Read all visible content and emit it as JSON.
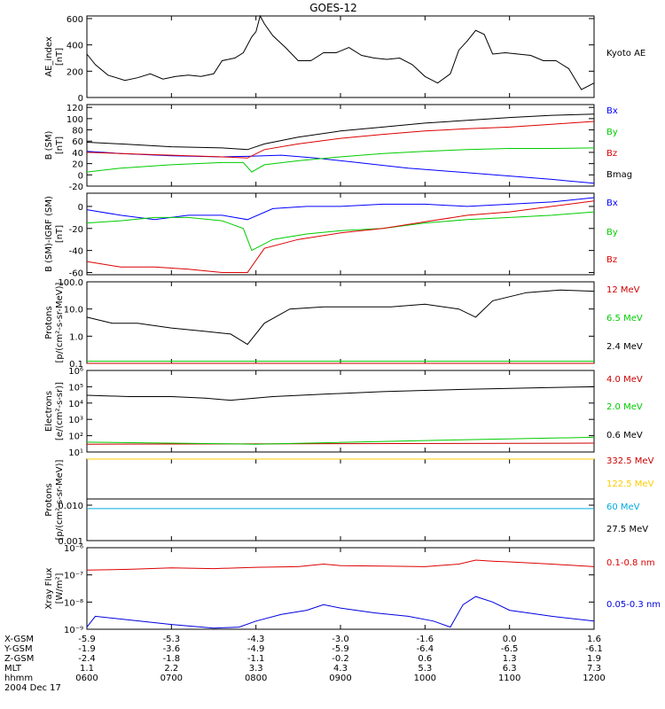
{
  "title": "GOES-12",
  "chart_data": [
    {
      "type": "line",
      "ylabel": "AE_index\n[nT]",
      "y_ticks": [
        "600",
        "400",
        "200",
        "0"
      ],
      "ylim": [
        0,
        620
      ],
      "log": false,
      "legend_placement": "right",
      "series": [
        {
          "name": "Kyoto AE",
          "color": "#000000",
          "x_hours": [
            6.0,
            6.1,
            6.25,
            6.45,
            6.6,
            6.75,
            6.9,
            7.05,
            7.2,
            7.35,
            7.5,
            7.6,
            7.75,
            7.85,
            7.95,
            8.0,
            8.05,
            8.1,
            8.2,
            8.35,
            8.5,
            8.65,
            8.8,
            8.95,
            9.1,
            9.25,
            9.4,
            9.55,
            9.7,
            9.85,
            10.0,
            10.15,
            10.3,
            10.4,
            10.5,
            10.6,
            10.7,
            10.8,
            10.95,
            11.1,
            11.25,
            11.4,
            11.55,
            11.7,
            11.85,
            12.0
          ],
          "values": [
            330,
            250,
            170,
            130,
            150,
            180,
            140,
            160,
            170,
            160,
            180,
            280,
            300,
            340,
            460,
            500,
            630,
            560,
            470,
            380,
            280,
            280,
            340,
            340,
            380,
            320,
            300,
            290,
            300,
            250,
            160,
            110,
            180,
            360,
            430,
            510,
            480,
            330,
            340,
            330,
            320,
            280,
            280,
            220,
            60,
            110
          ]
        }
      ]
    },
    {
      "type": "line",
      "ylabel": "B (SM)\n[nT]",
      "y_ticks": [
        "120",
        "100",
        "80",
        "60",
        "40",
        "20",
        "0",
        "-20"
      ],
      "ylim": [
        -20,
        125
      ],
      "log": false,
      "legend_placement": "right",
      "series": [
        {
          "name": "Bx",
          "color": "#0000ff",
          "x_hours": [
            6.0,
            6.4,
            7.0,
            7.6,
            7.9,
            8.3,
            8.7,
            9.2,
            9.8,
            10.4,
            11.0,
            11.5,
            12.0
          ],
          "values": [
            42,
            38,
            34,
            32,
            33,
            35,
            30,
            22,
            12,
            5,
            -2,
            -8,
            -15
          ]
        },
        {
          "name": "By",
          "color": "#00cc00",
          "x_hours": [
            6.0,
            6.4,
            7.0,
            7.6,
            7.85,
            7.95,
            8.1,
            8.5,
            9.0,
            9.5,
            10.0,
            10.5,
            11.0,
            11.5,
            12.0
          ],
          "values": [
            5,
            12,
            18,
            22,
            22,
            5,
            18,
            25,
            32,
            38,
            42,
            45,
            47,
            47,
            48
          ]
        },
        {
          "name": "Bz",
          "color": "#dd0000",
          "x_hours": [
            6.0,
            6.4,
            7.0,
            7.6,
            7.9,
            8.1,
            8.5,
            9.0,
            9.5,
            10.0,
            10.5,
            11.0,
            11.5,
            12.0
          ],
          "values": [
            40,
            38,
            35,
            32,
            30,
            45,
            55,
            65,
            72,
            78,
            82,
            85,
            90,
            95
          ]
        },
        {
          "name": "Bmag",
          "color": "#000000",
          "x_hours": [
            6.0,
            6.4,
            7.0,
            7.6,
            7.9,
            8.1,
            8.5,
            9.0,
            9.5,
            10.0,
            10.5,
            11.0,
            11.5,
            12.0
          ],
          "values": [
            58,
            55,
            50,
            48,
            45,
            55,
            67,
            78,
            85,
            92,
            97,
            102,
            106,
            108
          ]
        }
      ]
    },
    {
      "type": "line",
      "ylabel": "B (SM)-IGRF (SM)\n[nT]",
      "y_ticks": [
        "0",
        "-20",
        "-40",
        "-60"
      ],
      "ylim": [
        -62,
        12
      ],
      "log": false,
      "legend_placement": "right",
      "series": [
        {
          "name": "Bx",
          "color": "#0000ff",
          "x_hours": [
            6.0,
            6.4,
            6.8,
            7.2,
            7.6,
            7.9,
            8.2,
            8.6,
            9.0,
            9.5,
            10.0,
            10.5,
            11.0,
            11.5,
            12.0
          ],
          "values": [
            -3,
            -8,
            -12,
            -8,
            -8,
            -12,
            -2,
            0,
            0,
            2,
            2,
            0,
            2,
            4,
            8
          ]
        },
        {
          "name": "By",
          "color": "#00cc00",
          "x_hours": [
            6.0,
            6.4,
            6.8,
            7.2,
            7.6,
            7.85,
            7.95,
            8.2,
            8.6,
            9.0,
            9.5,
            10.0,
            10.5,
            11.0,
            11.5,
            12.0
          ],
          "values": [
            -15,
            -13,
            -10,
            -10,
            -13,
            -20,
            -40,
            -30,
            -25,
            -22,
            -20,
            -15,
            -12,
            -10,
            -8,
            -5
          ]
        },
        {
          "name": "Bz",
          "color": "#dd0000",
          "x_hours": [
            6.0,
            6.4,
            6.8,
            7.2,
            7.6,
            7.9,
            8.1,
            8.5,
            9.0,
            9.5,
            10.0,
            10.5,
            11.0,
            11.5,
            12.0
          ],
          "values": [
            -50,
            -55,
            -55,
            -57,
            -60,
            -60,
            -38,
            -30,
            -24,
            -20,
            -14,
            -8,
            -5,
            0,
            5
          ]
        }
      ]
    },
    {
      "type": "line",
      "ylabel": "Protons\n[p/(cm²-s-sr-MeV)]",
      "y_ticks": [
        "100.0",
        "10.0",
        "1.0",
        "0.1"
      ],
      "ylim": [
        0.1,
        100
      ],
      "log": true,
      "legend_placement": "right",
      "series": [
        {
          "name": "12 MeV",
          "color": "#cc0000",
          "x_hours": [
            6.0,
            12.0
          ],
          "values": [
            0.1,
            0.1
          ]
        },
        {
          "name": "6.5 MeV",
          "color": "#00cc00",
          "x_hours": [
            6.0,
            12.0
          ],
          "values": [
            0.12,
            0.12
          ]
        },
        {
          "name": "2.4 MeV",
          "color": "#000000",
          "x_hours": [
            6.0,
            6.3,
            6.6,
            7.0,
            7.4,
            7.7,
            7.9,
            8.1,
            8.4,
            8.8,
            9.2,
            9.6,
            10.0,
            10.4,
            10.6,
            10.8,
            11.2,
            11.6,
            12.0
          ],
          "values": [
            5,
            3,
            3,
            2,
            1.5,
            1.2,
            0.5,
            3,
            10,
            12,
            12,
            12,
            15,
            10,
            5,
            20,
            40,
            50,
            45
          ]
        }
      ]
    },
    {
      "type": "line",
      "ylabel": "Electrons\n[e/(cm²-s-sr)]",
      "y_ticks": [
        "10⁶",
        "10⁵",
        "10⁴",
        "10³",
        "10²",
        "10¹"
      ],
      "ylim": [
        10,
        1000000
      ],
      "log": true,
      "legend_placement": "right",
      "series": [
        {
          "name": "4.0 MeV",
          "color": "#cc0000",
          "x_hours": [
            6.0,
            12.0
          ],
          "values": [
            30,
            35
          ]
        },
        {
          "name": "2.0 MeV",
          "color": "#00cc00",
          "x_hours": [
            6.0,
            8.0,
            10.0,
            12.0
          ],
          "values": [
            40,
            30,
            50,
            80
          ]
        },
        {
          "name": "0.6 MeV",
          "color": "#000000",
          "x_hours": [
            6.0,
            6.5,
            7.0,
            7.4,
            7.7,
            8.2,
            8.8,
            9.5,
            10.0,
            10.5,
            11.0,
            11.5,
            12.0
          ],
          "values": [
            30000,
            25000,
            25000,
            20000,
            15000,
            25000,
            35000,
            50000,
            60000,
            70000,
            80000,
            90000,
            100000
          ]
        }
      ]
    },
    {
      "type": "line",
      "ylabel": "Protons\n[p/(cm²-s-sr-MeV)]",
      "y_ticks": [
        "0.010",
        "0.001"
      ],
      "ylim": [
        0.001,
        0.2
      ],
      "log": true,
      "legend_placement": "right",
      "series": [
        {
          "name": "332.5 MeV",
          "color": "#cc0000",
          "x_hours": [
            6.0,
            12.0
          ],
          "values": [
            0.2,
            0.2
          ]
        },
        {
          "name": "122.5 MeV",
          "color": "#ffcc00",
          "x_hours": [
            6.0,
            12.0
          ],
          "values": [
            0.2,
            0.2
          ]
        },
        {
          "name": "60 MeV",
          "color": "#00aadd",
          "x_hours": [
            6.0,
            12.0
          ],
          "values": [
            0.008,
            0.008
          ]
        },
        {
          "name": "27.5 MeV",
          "color": "#000000",
          "x_hours": [
            6.0,
            12.0
          ],
          "values": [
            0.015,
            0.015
          ]
        }
      ]
    },
    {
      "type": "line",
      "ylabel": "Xray Flux\n[W/m²]",
      "y_ticks": [
        "10⁻⁶",
        "10⁻⁷",
        "10⁻⁸",
        "10⁻⁹"
      ],
      "ylim": [
        1e-09,
        1e-06
      ],
      "log": true,
      "legend_placement": "right",
      "series": [
        {
          "name": "0.1-0.8 nm",
          "color": "#dd0000",
          "x_hours": [
            6.0,
            6.5,
            7.0,
            7.5,
            8.0,
            8.5,
            8.8,
            9.0,
            9.5,
            10.0,
            10.4,
            10.6,
            10.8,
            11.0,
            11.5,
            12.0
          ],
          "values": [
            1.5e-07,
            1.6e-07,
            1.8e-07,
            1.7e-07,
            1.9e-07,
            2e-07,
            2.5e-07,
            2.2e-07,
            2.1e-07,
            2e-07,
            2.5e-07,
            3.5e-07,
            3.2e-07,
            3e-07,
            2.5e-07,
            2e-07
          ]
        },
        {
          "name": "0.05-0.3 nm",
          "color": "#0000dd",
          "x_hours": [
            6.0,
            6.1,
            6.5,
            7.0,
            7.5,
            7.8,
            8.0,
            8.3,
            8.6,
            8.8,
            9.0,
            9.4,
            9.8,
            10.1,
            10.3,
            10.45,
            10.6,
            10.8,
            11.0,
            11.5,
            12.0
          ],
          "values": [
            1.2e-09,
            3e-09,
            2.2e-09,
            1.5e-09,
            1.1e-09,
            1.2e-09,
            2e-09,
            3.5e-09,
            5e-09,
            8e-09,
            6e-09,
            4e-09,
            3e-09,
            2e-09,
            1.2e-09,
            8e-09,
            1.6e-08,
            1e-08,
            5e-09,
            3e-09,
            2e-09
          ]
        }
      ]
    }
  ],
  "x_axis": {
    "range_hours": [
      6.0,
      12.0
    ],
    "tick_hours": [
      6.0,
      7.0,
      8.0,
      9.0,
      10.0,
      11.0,
      12.0
    ],
    "rows": [
      {
        "label": "X-GSM",
        "values": [
          "-5.9",
          "-5.3",
          "-4.3",
          "-3.0",
          "-1.6",
          "0.0",
          "1.6"
        ]
      },
      {
        "label": "Y-GSM",
        "values": [
          "-1.9",
          "-3.6",
          "-4.9",
          "-5.9",
          "-6.4",
          "-6.5",
          "-6.1"
        ]
      },
      {
        "label": "Z-GSM",
        "values": [
          "-2.4",
          "-1.8",
          "-1.1",
          "-0.2",
          "0.6",
          "1.3",
          "1.9"
        ]
      },
      {
        "label": "MLT",
        "values": [
          "1.1",
          "2.2",
          "3.3",
          "4.3",
          "5.3",
          "6.3",
          "7.3"
        ]
      },
      {
        "label": "hhmm",
        "values": [
          "0600",
          "0700",
          "0800",
          "0900",
          "1000",
          "1100",
          "1200"
        ]
      }
    ],
    "date": "2004 Dec 17"
  }
}
